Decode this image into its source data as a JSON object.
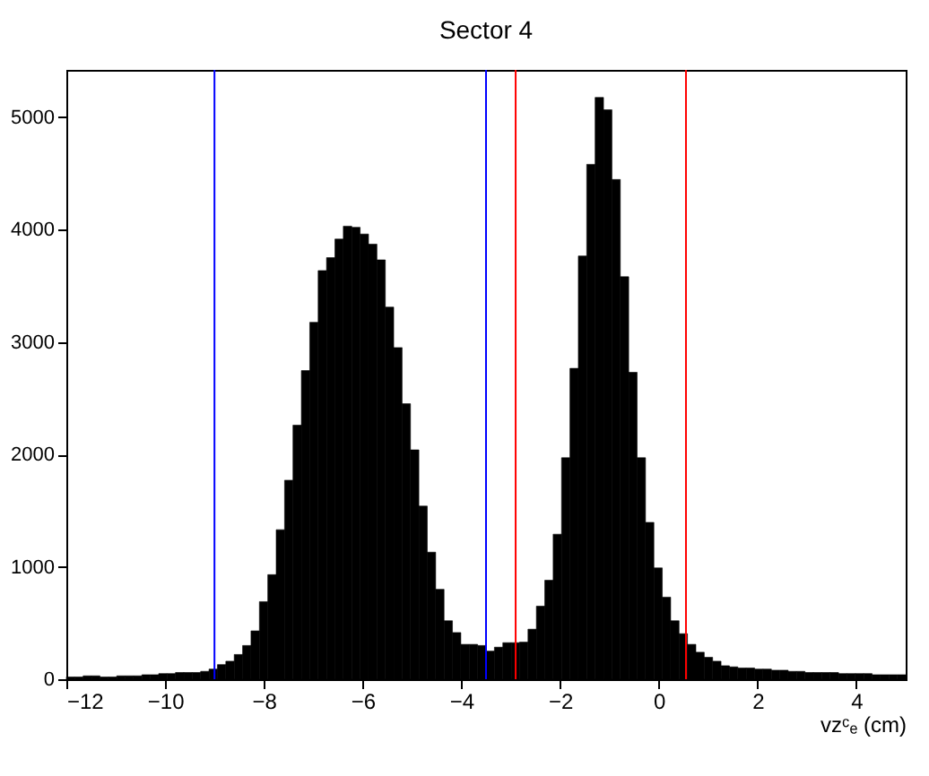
{
  "chart_data": {
    "type": "histogram",
    "title": "Sector 4",
    "xlabel": "vzᶜₑ (cm)",
    "bins": [
      -12,
      -11.83,
      -11.66,
      -11.49,
      -11.32,
      -11.15,
      -10.98,
      -10.81,
      -10.64,
      -10.47,
      -10.3,
      -10.13,
      -9.96,
      -9.79,
      -9.62,
      -9.45,
      -9.28,
      -9.11,
      -8.94,
      -8.77,
      -8.6,
      -8.43,
      -8.26,
      -8.09,
      -7.92,
      -7.75,
      -7.58,
      -7.41,
      -7.24,
      -7.07,
      -6.9,
      -6.73,
      -6.56,
      -6.39,
      -6.22,
      -6.05,
      -5.88,
      -5.71,
      -5.54,
      -5.37,
      -5.2,
      -5.03,
      -4.86,
      -4.69,
      -4.52,
      -4.35,
      -4.18,
      -4.01,
      -3.84,
      -3.67,
      -3.5,
      -3.33,
      -3.16,
      -2.99,
      -2.82,
      -2.65,
      -2.48,
      -2.31,
      -2.14,
      -1.97,
      -1.8,
      -1.63,
      -1.46,
      -1.29,
      -1.12,
      -0.95,
      -0.78,
      -0.61,
      -0.44,
      -0.27,
      -0.1,
      0.07,
      0.24,
      0.41,
      0.58,
      0.75,
      0.92,
      1.09,
      1.26,
      1.43,
      1.6,
      1.77,
      1.94,
      2.11,
      2.28,
      2.45,
      2.62,
      2.79,
      2.96,
      3.13,
      3.3,
      3.47,
      3.64,
      3.81,
      3.98,
      4.15,
      4.32,
      4.49,
      4.66,
      4.83,
      5
    ],
    "values": [
      20,
      20,
      30,
      30,
      20,
      20,
      30,
      30,
      30,
      40,
      40,
      50,
      50,
      60,
      60,
      60,
      70,
      90,
      130,
      160,
      220,
      300,
      430,
      690,
      930,
      1330,
      1770,
      2260,
      2745,
      3175,
      3635,
      3750,
      3915,
      4030,
      4020,
      3960,
      3870,
      3730,
      3310,
      2950,
      2450,
      2040,
      1540,
      1130,
      800,
      520,
      415,
      310,
      310,
      300,
      250,
      285,
      325,
      325,
      330,
      445,
      650,
      880,
      1290,
      1970,
      2765,
      3765,
      4580,
      5175,
      5065,
      4445,
      3580,
      2730,
      1970,
      1395,
      990,
      730,
      520,
      405,
      310,
      240,
      195,
      160,
      120,
      110,
      100,
      100,
      90,
      90,
      80,
      80,
      70,
      70,
      60,
      60,
      60,
      60,
      50,
      50,
      50,
      50,
      40,
      40,
      40,
      40
    ],
    "color": "#000000",
    "xlim": [
      -12,
      5
    ],
    "xticks": [
      -12,
      -10,
      -8,
      -6,
      -4,
      -2,
      0,
      2,
      4
    ],
    "ylim": [
      0,
      5420
    ],
    "yticks": [
      0,
      1000,
      2000,
      3000,
      4000,
      5000
    ],
    "ref_lines": [
      {
        "axis": "x",
        "value": -9,
        "color": "#0000ff"
      },
      {
        "axis": "x",
        "value": -3.5,
        "color": "#0000ff"
      },
      {
        "axis": "x",
        "value": -2.9,
        "color": "#ff0000"
      },
      {
        "axis": "x",
        "value": 0.55,
        "color": "#ff0000"
      }
    ],
    "grid": false
  }
}
